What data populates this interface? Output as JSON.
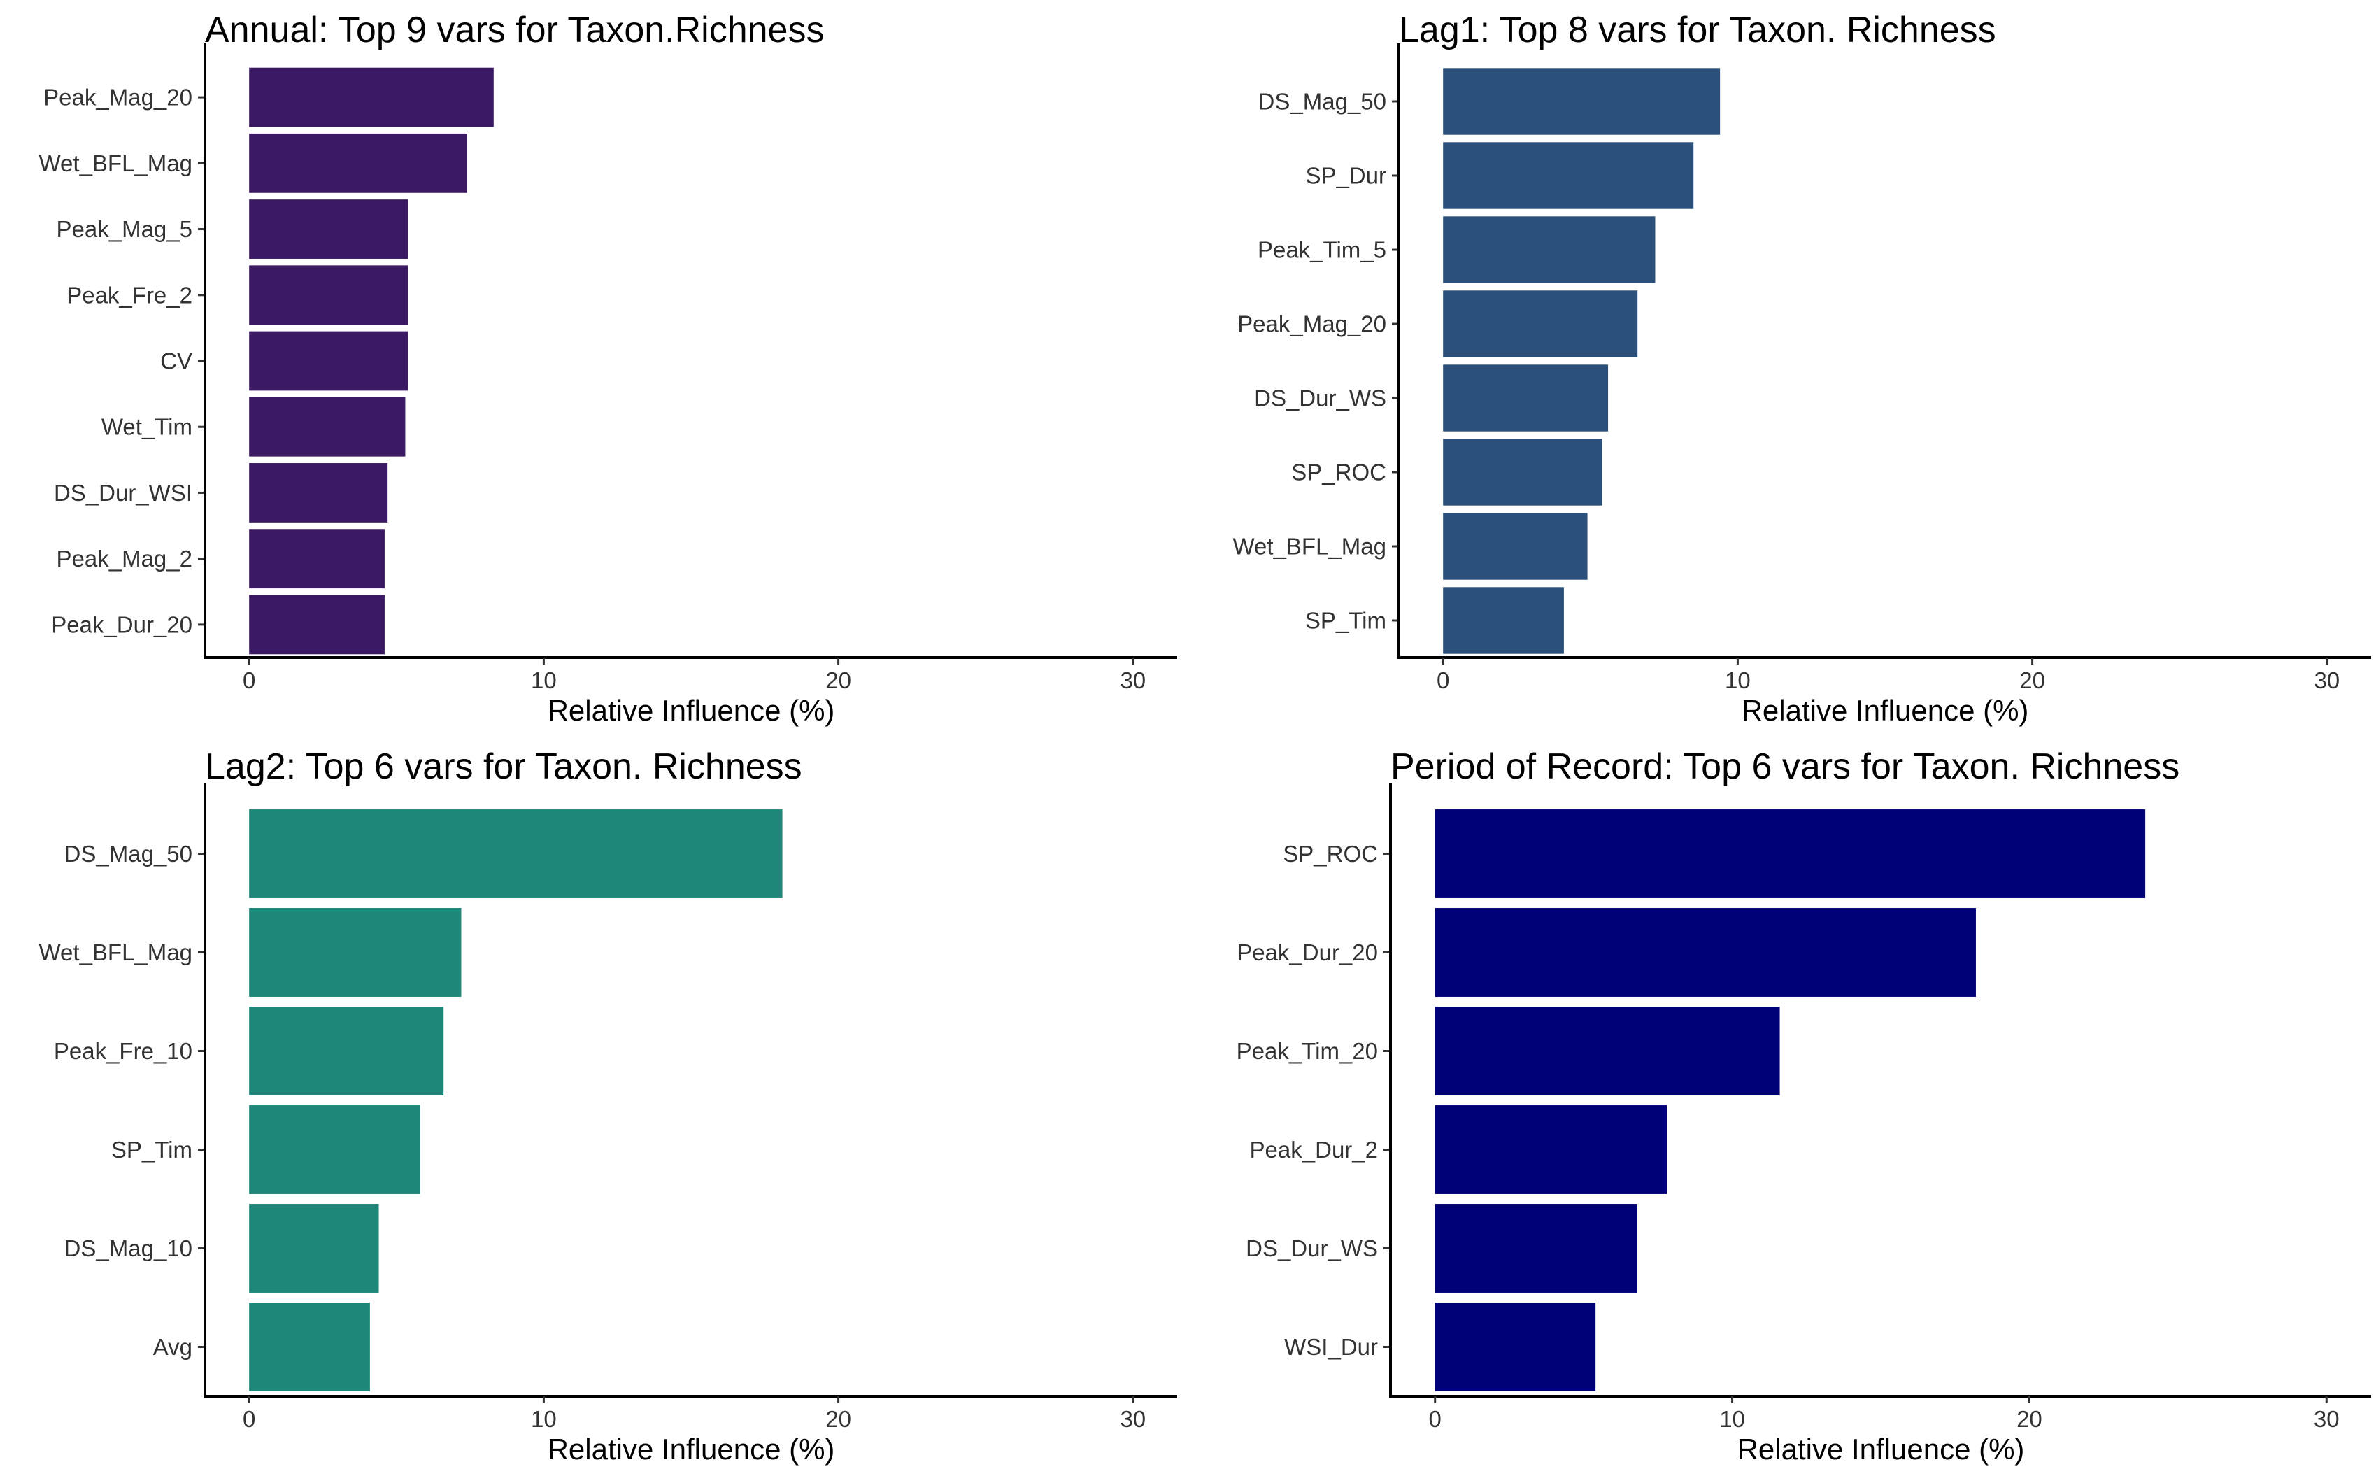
{
  "figure": {
    "background": "#ffffff"
  },
  "chart_data": [
    {
      "type": "bar",
      "orientation": "horizontal",
      "title": "Annual: Top 9 vars for Taxon.Richness",
      "xlabel": "Relative Influence (%)",
      "ylabel": "",
      "xlim": [
        -1.5,
        31.5
      ],
      "xticks": [
        0,
        10,
        20,
        30
      ],
      "color": "#3B1A63",
      "grid": false,
      "categories": [
        "Peak_Mag_20",
        "Wet_BFL_Mag",
        "Peak_Mag_5",
        "Peak_Fre_2",
        "CV",
        "Wet_Tim",
        "DS_Dur_WSI",
        "Peak_Mag_2",
        "Peak_Dur_20"
      ],
      "values": [
        8.3,
        7.4,
        5.4,
        5.4,
        5.4,
        5.3,
        4.7,
        4.6,
        4.6
      ]
    },
    {
      "type": "bar",
      "orientation": "horizontal",
      "title": "Lag1: Top 8 vars for Taxon. Richness",
      "xlabel": "Relative Influence (%)",
      "ylabel": "",
      "xlim": [
        -1.5,
        31.5
      ],
      "xticks": [
        0,
        10,
        20,
        30
      ],
      "color": "#2B5079",
      "grid": false,
      "categories": [
        "DS_Mag_50",
        "SP_Dur",
        "Peak_Tim_5",
        "Peak_Mag_20",
        "DS_Dur_WS",
        "SP_ROC",
        "Wet_BFL_Mag",
        "SP_Tim"
      ],
      "values": [
        9.4,
        8.5,
        7.2,
        6.6,
        5.6,
        5.4,
        4.9,
        4.1
      ]
    },
    {
      "type": "bar",
      "orientation": "horizontal",
      "title": "Lag2: Top 6 vars for Taxon. Richness",
      "xlabel": "Relative Influence (%)",
      "ylabel": "",
      "xlim": [
        -1.5,
        31.5
      ],
      "xticks": [
        0,
        10,
        20,
        30
      ],
      "color": "#1F877A",
      "grid": false,
      "categories": [
        "DS_Mag_50",
        "Wet_BFL_Mag",
        "Peak_Fre_10",
        "SP_Tim",
        "DS_Mag_10",
        "Avg"
      ],
      "values": [
        18.1,
        7.2,
        6.6,
        5.8,
        4.4,
        4.1
      ]
    },
    {
      "type": "bar",
      "orientation": "horizontal",
      "title": "Period of Record: Top 6 vars for Taxon. Richness",
      "xlabel": "Relative Influence (%)",
      "ylabel": "",
      "xlim": [
        -1.5,
        31.5
      ],
      "xticks": [
        0,
        10,
        20,
        30
      ],
      "color": "#000077",
      "grid": false,
      "categories": [
        "SP_ROC",
        "Peak_Dur_20",
        "Peak_Tim_20",
        "Peak_Dur_2",
        "DS_Dur_WS",
        "WSI_Dur"
      ],
      "values": [
        23.9,
        18.2,
        11.6,
        7.8,
        6.8,
        5.4
      ]
    }
  ]
}
